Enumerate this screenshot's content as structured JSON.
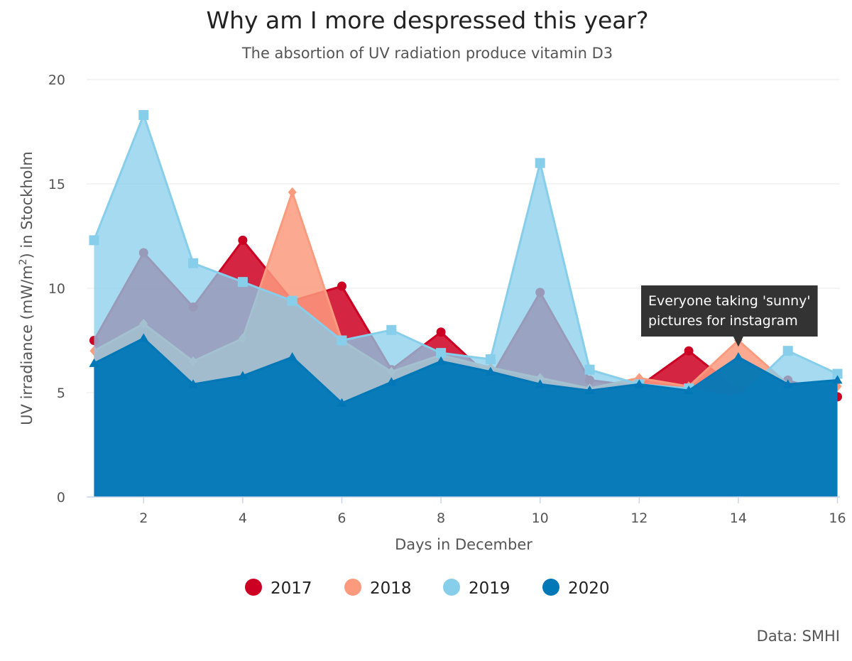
{
  "chart_data": {
    "type": "area",
    "title": "Why am I more despressed this year?",
    "subtitle": "The absortion of UV radiation produce vitamin D3",
    "xlabel": "Days in December",
    "ylabel_prefix": "UV irradiance (mW/m",
    "ylabel_sup": "2",
    "ylabel_suffix": ") in Stockholm",
    "xlim": [
      0.85,
      16.05
    ],
    "ylim": [
      0,
      20
    ],
    "x_ticks": [
      2,
      4,
      6,
      8,
      10,
      12,
      14,
      16
    ],
    "y_ticks": [
      0,
      5,
      10,
      15,
      20
    ],
    "grid": true,
    "legend_position": "bottom",
    "x": [
      1,
      2,
      3,
      4,
      5,
      6,
      7,
      8,
      9,
      10,
      11,
      12,
      13,
      14,
      15,
      16
    ],
    "series": [
      {
        "name": "2017",
        "color": "#cc0022",
        "fill_opacity": 0.85,
        "marker": "circle",
        "values": [
          7.5,
          11.7,
          9.1,
          12.3,
          9.4,
          10.1,
          6.1,
          7.9,
          5.7,
          9.8,
          5.6,
          5.3,
          7.0,
          5.1,
          5.6,
          4.8
        ]
      },
      {
        "name": "2018",
        "color": "#fc9a7e",
        "fill_opacity": 0.85,
        "marker": "diamond",
        "values": [
          7.0,
          8.3,
          6.5,
          7.6,
          14.6,
          7.5,
          6.0,
          6.8,
          6.2,
          5.7,
          5.2,
          5.7,
          5.3,
          7.5,
          5.4,
          5.3
        ]
      },
      {
        "name": "2019",
        "color": "#87ceeb",
        "fill_opacity": 0.75,
        "marker": "square",
        "values": [
          12.3,
          18.3,
          11.2,
          10.3,
          9.4,
          7.5,
          8.0,
          6.9,
          6.6,
          16.0,
          6.1,
          5.4,
          5.2,
          4.7,
          7.0,
          5.9
        ]
      },
      {
        "name": "2020",
        "color": "#0077b6",
        "fill_opacity": 0.95,
        "marker": "triangle",
        "values": [
          6.4,
          7.6,
          5.4,
          5.8,
          6.7,
          4.5,
          5.5,
          6.5,
          6.0,
          5.4,
          5.1,
          5.4,
          5.1,
          6.7,
          5.4,
          5.6
        ]
      }
    ],
    "annotation": {
      "line1": "Everyone taking 'sunny'",
      "line2": "pictures for instagram",
      "x": 14,
      "y": 7.2
    },
    "credit": "Data: SMHI"
  },
  "colors": {
    "grid": "#e8e8e8",
    "axis": "#ccd6eb",
    "annotation_bg": "#333333"
  }
}
